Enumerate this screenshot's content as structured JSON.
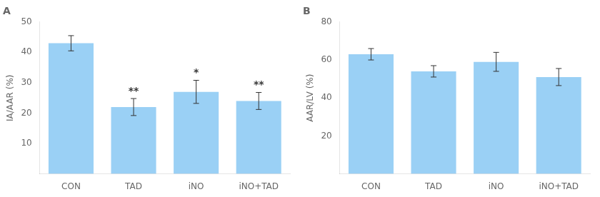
{
  "chart_data": [
    {
      "type": "bar",
      "title": "A",
      "categories": [
        "CON",
        "TAD",
        "iNO",
        "iNO+TAD"
      ],
      "values": [
        43.0,
        22.0,
        27.0,
        24.0
      ],
      "errors": [
        2.5,
        2.8,
        3.8,
        2.8
      ],
      "y_label": "IA/AAR (%)",
      "ylim": [
        0,
        50
      ],
      "yticks": [
        10,
        20,
        30,
        40,
        50
      ],
      "annotations": [
        {
          "x": "TAD",
          "text": "**"
        },
        {
          "x": "iNO",
          "text": "*"
        },
        {
          "x": "iNO+TAD",
          "text": "**"
        }
      ],
      "grid": false
    },
    {
      "type": "bar",
      "title": "B",
      "categories": [
        "CON",
        "TAD",
        "iNO",
        "iNO+TAD"
      ],
      "values": [
        63.0,
        54.0,
        59.0,
        51.0
      ],
      "errors": [
        3.0,
        3.0,
        5.0,
        4.5
      ],
      "y_label": "AAR/LV (%)",
      "ylim": [
        0,
        80
      ],
      "yticks": [
        20,
        40,
        60,
        80
      ],
      "grid": false
    }
  ]
}
